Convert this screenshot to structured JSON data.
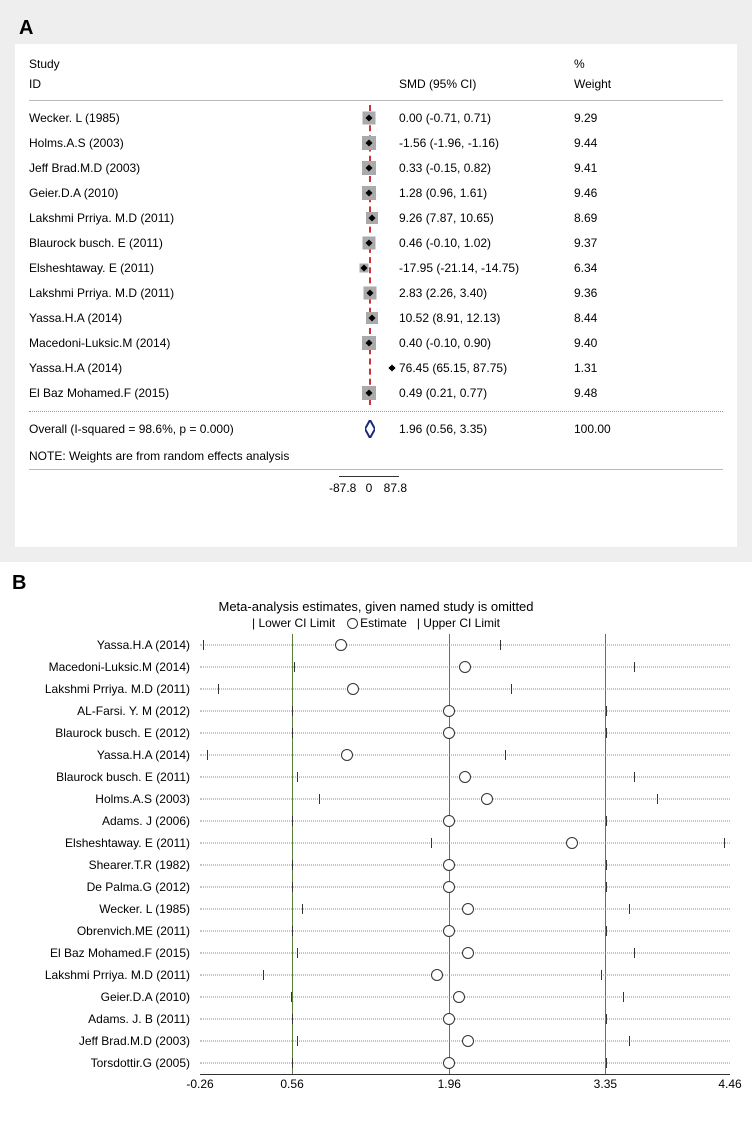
{
  "panel_a": {
    "label": "A",
    "bg_color": "#eeeeee",
    "card_bg": "#ffffff",
    "header": {
      "study_l1": "Study",
      "study_l2": "ID",
      "smd": "SMD (95% CI)",
      "wt_l1": "%",
      "wt_l2": "Weight"
    },
    "x_min": -100,
    "x_max": 100,
    "axis_ticks": [
      {
        "v": -87.8,
        "label": "-87.8"
      },
      {
        "v": 0,
        "label": "0"
      },
      {
        "v": 87.8,
        "label": "87.8"
      }
    ],
    "vline_at": 0,
    "vline_color": "#c33",
    "box_color": "#aaaaaa",
    "point_color": "#000000",
    "rows": [
      {
        "study": "Wecker. L (1985)",
        "est": 0.0,
        "lo": -0.71,
        "hi": 0.71,
        "smd": "0.00 (-0.71, 0.71)",
        "wt": "9.29",
        "sz": 13
      },
      {
        "study": "Holms.A.S (2003)",
        "est": -1.56,
        "lo": -1.96,
        "hi": -1.16,
        "smd": "-1.56 (-1.96, -1.16)",
        "wt": "9.44",
        "sz": 14
      },
      {
        "study": "Jeff Brad.M.D (2003)",
        "est": 0.33,
        "lo": -0.15,
        "hi": 0.82,
        "smd": "0.33 (-0.15, 0.82)",
        "wt": "9.41",
        "sz": 14
      },
      {
        "study": "Geier.D.A (2010)",
        "est": 1.28,
        "lo": 0.96,
        "hi": 1.61,
        "smd": "1.28 (0.96, 1.61)",
        "wt": "9.46",
        "sz": 14
      },
      {
        "study": "Lakshmi Prriya. M.D (2011)",
        "est": 9.26,
        "lo": 7.87,
        "hi": 10.65,
        "smd": "9.26 (7.87, 10.65)",
        "wt": "8.69",
        "sz": 12
      },
      {
        "study": "Blaurock busch. E (2011)",
        "est": 0.46,
        "lo": -0.1,
        "hi": 1.02,
        "smd": "0.46 (-0.10, 1.02)",
        "wt": "9.37",
        "sz": 13
      },
      {
        "study": "Elsheshtaway. E (2011)",
        "est": -17.95,
        "lo": -21.14,
        "hi": -14.75,
        "smd": "-17.95 (-21.14, -14.75)",
        "wt": "6.34",
        "sz": 9
      },
      {
        "study": "Lakshmi Prriya. M.D (2011)",
        "est": 2.83,
        "lo": 2.26,
        "hi": 3.4,
        "smd": "2.83 (2.26, 3.40)",
        "wt": "9.36",
        "sz": 13
      },
      {
        "study": "Yassa.H.A (2014)",
        "est": 10.52,
        "lo": 8.91,
        "hi": 12.13,
        "smd": "10.52 (8.91, 12.13)",
        "wt": "8.44",
        "sz": 12
      },
      {
        "study": "Macedoni-Luksic.M (2014)",
        "est": 0.4,
        "lo": -0.1,
        "hi": 0.9,
        "smd": "0.40 (-0.10, 0.90)",
        "wt": "9.40",
        "sz": 14
      },
      {
        "study": "Yassa.H.A (2014)",
        "est": 76.45,
        "lo": 65.15,
        "hi": 87.75,
        "smd": "76.45 (65.15, 87.75)",
        "wt": "1.31",
        "sz": 4,
        "show_ci": true
      },
      {
        "study": "El Baz Mohamed.F (2015)",
        "est": 0.49,
        "lo": 0.21,
        "hi": 0.77,
        "smd": "0.49 (0.21, 0.77)",
        "wt": "9.48",
        "sz": 14
      }
    ],
    "overall": {
      "study": "Overall  (I-squared = 98.6%, p = 0.000)",
      "est": 1.96,
      "lo": 0.56,
      "hi": 3.35,
      "smd": "1.96 (0.56, 3.35)",
      "wt": "100.00",
      "diamond_color": "#1a2b7a"
    },
    "note": "NOTE: Weights are from random effects analysis"
  },
  "panel_b": {
    "label": "B",
    "title": "Meta-analysis estimates, given named study is omitted",
    "legend_lo": "Lower CI Limit",
    "legend_est": "Estimate",
    "legend_hi": "Upper CI Limit",
    "x_min": -0.26,
    "x_max": 4.46,
    "axis_ticks": [
      {
        "v": -0.26,
        "label": "-0.26"
      },
      {
        "v": 0.56,
        "label": "0.56"
      },
      {
        "v": 1.96,
        "label": "1.96"
      },
      {
        "v": 3.35,
        "label": "3.35"
      },
      {
        "v": 4.46,
        "label": "4.46"
      }
    ],
    "vlines": [
      0.56,
      1.96,
      3.35
    ],
    "vline_color": "#5a7f3f",
    "dot_color": "#888888",
    "circle_border": "#333333",
    "rows": [
      {
        "study": "Yassa.H.A (2014)",
        "lo": -0.23,
        "est": 1.0,
        "hi": 2.4
      },
      {
        "study": "Macedoni-Luksic.M (2014)",
        "lo": 0.58,
        "est": 2.1,
        "hi": 3.6
      },
      {
        "study": "Lakshmi Prriya. M.D (2011)",
        "lo": -0.1,
        "est": 1.1,
        "hi": 2.5
      },
      {
        "study": "AL-Farsi. Y. M (2012)",
        "lo": 0.56,
        "est": 1.96,
        "hi": 3.35
      },
      {
        "study": "Blaurock busch. E (2012)",
        "lo": 0.56,
        "est": 1.96,
        "hi": 3.35
      },
      {
        "study": "Yassa.H.A (2014)",
        "lo": -0.2,
        "est": 1.05,
        "hi": 2.45
      },
      {
        "study": "Blaurock busch. E (2011)",
        "lo": 0.6,
        "est": 2.1,
        "hi": 3.6
      },
      {
        "study": "Holms.A.S (2003)",
        "lo": 0.8,
        "est": 2.3,
        "hi": 3.8
      },
      {
        "study": "Adams. J (2006)",
        "lo": 0.56,
        "est": 1.96,
        "hi": 3.35
      },
      {
        "study": "Elsheshtaway. E (2011)",
        "lo": 1.8,
        "est": 3.05,
        "hi": 4.4
      },
      {
        "study": "Shearer.T.R (1982)",
        "lo": 0.56,
        "est": 1.96,
        "hi": 3.35
      },
      {
        "study": "De Palma.G (2012)",
        "lo": 0.56,
        "est": 1.96,
        "hi": 3.35
      },
      {
        "study": "Wecker. L (1985)",
        "lo": 0.65,
        "est": 2.13,
        "hi": 3.55
      },
      {
        "study": "Obrenvich.ME (2011)",
        "lo": 0.56,
        "est": 1.96,
        "hi": 3.35
      },
      {
        "study": "El Baz Mohamed.F (2015)",
        "lo": 0.6,
        "est": 2.13,
        "hi": 3.6
      },
      {
        "study": "Lakshmi Prriya. M.D (2011)",
        "lo": 0.3,
        "est": 1.85,
        "hi": 3.3
      },
      {
        "study": "Geier.D.A (2010)",
        "lo": 0.55,
        "est": 2.05,
        "hi": 3.5
      },
      {
        "study": "Adams. J. B (2011)",
        "lo": 0.56,
        "est": 1.96,
        "hi": 3.35
      },
      {
        "study": "Jeff Brad.M.D (2003)",
        "lo": 0.6,
        "est": 2.13,
        "hi": 3.55
      },
      {
        "study": "Torsdottir.G (2005)",
        "lo": 0.56,
        "est": 1.96,
        "hi": 3.35
      }
    ]
  }
}
